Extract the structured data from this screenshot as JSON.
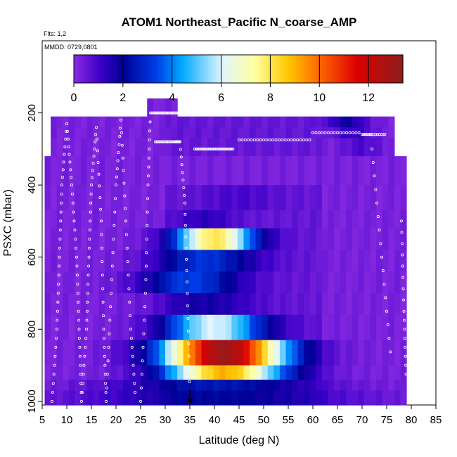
{
  "chart_data": {
    "type": "heatmap",
    "title": "ATOM1 Northeast_Pacific N_coarse_AMP",
    "annotations": [
      "Flts: 1,2",
      "MMDD: 0729,0801"
    ],
    "xlabel": "Latitude (deg N)",
    "ylabel": "PSXC (mbar)",
    "xlim": [
      5,
      85
    ],
    "ylim": [
      1010,
      0
    ],
    "y_reversed": true,
    "x_ticks": [
      5,
      10,
      15,
      20,
      25,
      30,
      35,
      40,
      45,
      50,
      55,
      60,
      65,
      70,
      75,
      80,
      85
    ],
    "y_ticks": [
      200,
      400,
      600,
      800,
      1000
    ],
    "colorbar": {
      "range": [
        0,
        13.4
      ],
      "ticks": [
        0,
        2,
        4,
        6,
        8,
        10,
        12
      ],
      "placement": "top-inside"
    },
    "marker": {
      "type": "arrow",
      "x": 35,
      "y": 1000
    },
    "field": {
      "x_bins": 60,
      "x_range": [
        5.5,
        79
      ],
      "layers": [
        {
          "p": [
            160,
            210
          ],
          "peaks": []
        },
        {
          "p": [
            210,
            240
          ],
          "peaks": [
            {
              "x": 67,
              "w": 4,
              "a": 1.5
            }
          ]
        },
        {
          "p": [
            240,
            270
          ],
          "peaks": [
            {
              "x": 68,
              "w": 4,
              "a": 1.0
            }
          ]
        },
        {
          "p": [
            270,
            320
          ],
          "peaks": [
            {
              "x": 70,
              "w": 4,
              "a": 0.6
            }
          ]
        },
        {
          "p": [
            320,
            400
          ],
          "peaks": []
        },
        {
          "p": [
            400,
            470
          ],
          "peaks": [
            {
              "x": 45,
              "w": 8,
              "a": 0.4
            }
          ]
        },
        {
          "p": [
            470,
            520
          ],
          "peaks": [
            {
              "x": 38,
              "w": 6,
              "a": 0.8
            }
          ]
        },
        {
          "p": [
            520,
            580
          ],
          "peaks": [
            {
              "x": 40,
              "w": 8,
              "a": 7.5
            }
          ]
        },
        {
          "p": [
            580,
            640
          ],
          "peaks": [
            {
              "x": 38,
              "w": 10,
              "a": 2.6
            }
          ]
        },
        {
          "p": [
            640,
            700
          ],
          "peaks": [
            {
              "x": 35,
              "w": 10,
              "a": 2.8
            }
          ]
        },
        {
          "p": [
            700,
            760
          ],
          "peaks": [
            {
              "x": 38,
              "w": 10,
              "a": 1.2
            }
          ]
        },
        {
          "p": [
            760,
            830
          ],
          "peaks": [
            {
              "x": 40,
              "w": 10,
              "a": 5.5
            }
          ]
        },
        {
          "p": [
            830,
            900
          ],
          "peaks": [
            {
              "x": 42,
              "w": 12,
              "a": 12.5
            }
          ]
        },
        {
          "p": [
            900,
            940
          ],
          "peaks": [
            {
              "x": 42,
              "w": 12,
              "a": 8.5
            }
          ]
        },
        {
          "p": [
            940,
            970
          ],
          "peaks": [
            {
              "x": 40,
              "w": 20,
              "a": 2.0
            }
          ]
        },
        {
          "p": [
            970,
            1010
          ],
          "peaks": [
            {
              "x": 40,
              "w": 25,
              "a": 1.6
            }
          ]
        }
      ]
    },
    "flight_tracks": [
      {
        "lat": [
          7,
          8,
          8.5,
          9,
          10
        ],
        "p": [
          1000,
          800,
          600,
          400,
          230
        ]
      },
      {
        "lat": [
          10,
          11,
          12,
          12.5,
          13
        ],
        "p": [
          230,
          400,
          600,
          800,
          1000
        ]
      },
      {
        "lat": [
          13,
          14,
          14.5,
          15,
          16
        ],
        "p": [
          1000,
          800,
          600,
          400,
          240
        ]
      },
      {
        "lat": [
          16,
          17,
          17.5,
          18
        ],
        "p": [
          240,
          500,
          800,
          1000
        ]
      },
      {
        "lat": [
          18,
          19,
          20,
          21
        ],
        "p": [
          1000,
          700,
          400,
          220
        ]
      },
      {
        "lat": [
          21,
          22,
          23,
          24
        ],
        "p": [
          220,
          500,
          800,
          1000
        ]
      },
      {
        "lat": [
          25,
          26,
          26.5,
          27
        ],
        "p": [
          1000,
          700,
          400,
          200
        ]
      },
      {
        "lat": [
          27,
          29,
          31,
          33
        ],
        "p": [
          200,
          200,
          200,
          200
        ]
      },
      {
        "lat": [
          28,
          30,
          32,
          33
        ],
        "p": [
          280,
          280,
          280,
          280
        ]
      },
      {
        "lat": [
          33,
          34,
          34.5,
          35
        ],
        "p": [
          280,
          450,
          700,
          980
        ]
      },
      {
        "lat": [
          36,
          38,
          40,
          42,
          44
        ],
        "p": [
          300,
          300,
          300,
          300,
          300
        ]
      },
      {
        "lat": [
          45,
          50,
          55,
          60
        ],
        "p": [
          275,
          275,
          275,
          275
        ]
      },
      {
        "lat": [
          60,
          65,
          70
        ],
        "p": [
          255,
          255,
          255
        ]
      },
      {
        "lat": [
          70,
          72,
          75
        ],
        "p": [
          260,
          260,
          260
        ]
      },
      {
        "lat": [
          72,
          74,
          76
        ],
        "p": [
          300,
          600,
          900
        ]
      },
      {
        "lat": [
          78,
          78.5,
          79
        ],
        "p": [
          500,
          750,
          950
        ]
      }
    ]
  }
}
